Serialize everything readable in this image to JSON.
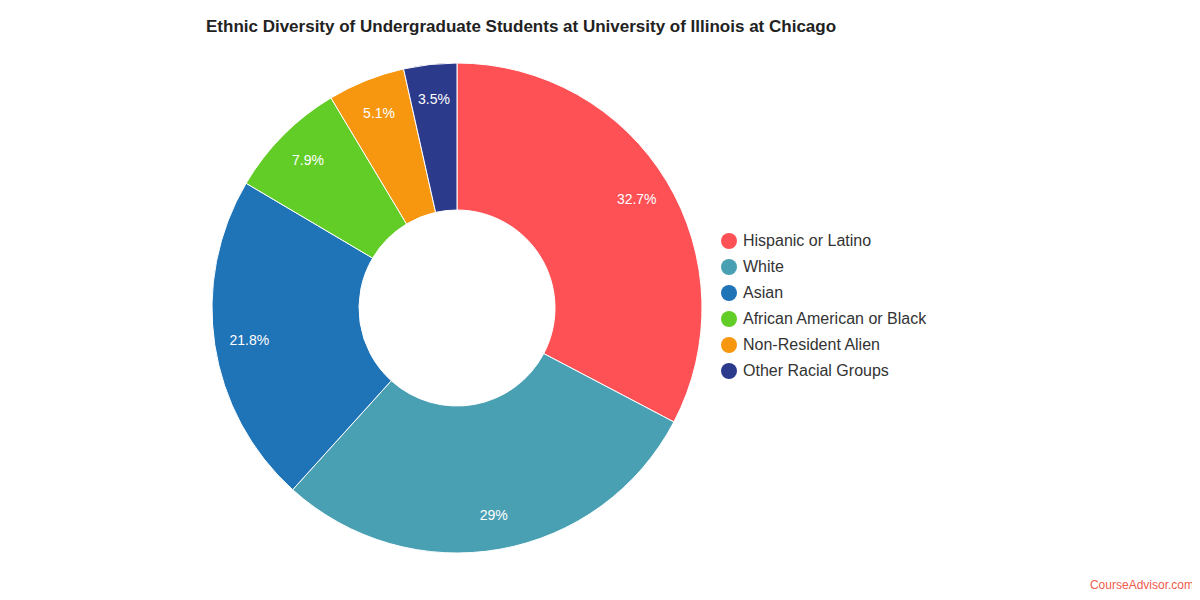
{
  "chart_data": {
    "type": "pie",
    "title": "Ethnic Diversity of Undergraduate Students at University of Illinois at Chicago",
    "categories": [
      "Hispanic or Latino",
      "White",
      "Asian",
      "African American or Black",
      "Non-Resident Alien",
      "Other Racial Groups"
    ],
    "values": [
      32.7,
      29,
      21.8,
      7.9,
      5.1,
      3.5
    ],
    "value_labels": [
      "32.7%",
      "29%",
      "21.8%",
      "7.9%",
      "5.1%",
      "3.5%"
    ],
    "colors": [
      "#fe5156",
      "#4aa0b3",
      "#1f73b7",
      "#62cd27",
      "#f7960f",
      "#2c3a8c"
    ],
    "data_labels": true,
    "legend": "right",
    "source": "CourseAdvisor.com"
  }
}
